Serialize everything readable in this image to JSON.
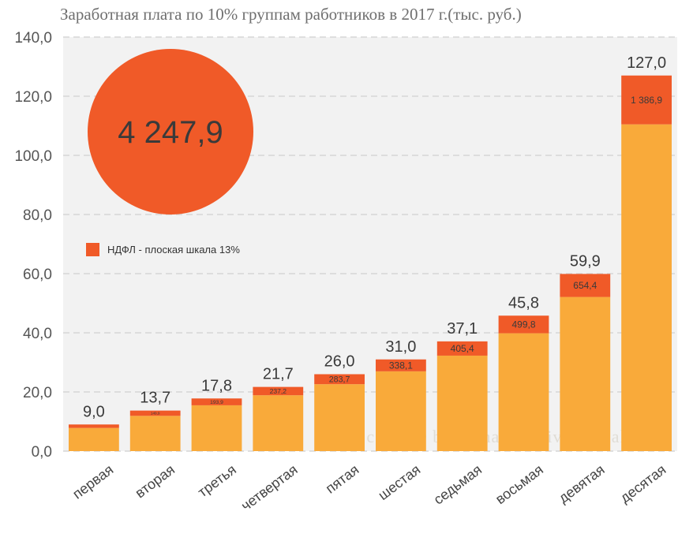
{
  "title": "Заработная плата по 10% группам работников в 2017 г.(тыс. руб.)",
  "bubble": {
    "value": "4 247,9",
    "color": "#f05a28"
  },
  "legend": {
    "label": "НДФЛ - плоская шкала 13%",
    "color": "#f05a28"
  },
  "watermark": "Росстат © burckina-new.livejournal.com",
  "colors": {
    "base": "#f9aa3a",
    "tax": "#f05a28",
    "plot_bg": "#f2f2f2",
    "grid": "#d6d6d6"
  },
  "chart_data": {
    "type": "bar",
    "stacked": true,
    "categories": [
      "первая",
      "вторая",
      "третья",
      "четвертая",
      "пятая",
      "шестая",
      "седьмая",
      "восьмая",
      "девятая",
      "десятая"
    ],
    "totals": [
      9.0,
      13.7,
      17.8,
      21.7,
      26.0,
      31.0,
      37.1,
      45.8,
      59.9,
      127.0
    ],
    "total_labels": [
      "9,0",
      "13,7",
      "17,8",
      "21,7",
      "26,0",
      "31,0",
      "37,1",
      "45,8",
      "59,9",
      "127,0"
    ],
    "tax_labels": [
      "",
      "149,9",
      "193,9",
      "237,2",
      "283,7",
      "338,1",
      "405,4",
      "499,8",
      "654,4",
      "1 386,9"
    ],
    "tax_share": 0.13,
    "ylim": [
      0,
      140
    ],
    "yticks": [
      0,
      20,
      40,
      60,
      80,
      100,
      120,
      140
    ],
    "ytick_labels": [
      "0,0",
      "20,0",
      "40,0",
      "60,0",
      "80,0",
      "100,0",
      "120,0",
      "140,0"
    ],
    "grid": true
  }
}
